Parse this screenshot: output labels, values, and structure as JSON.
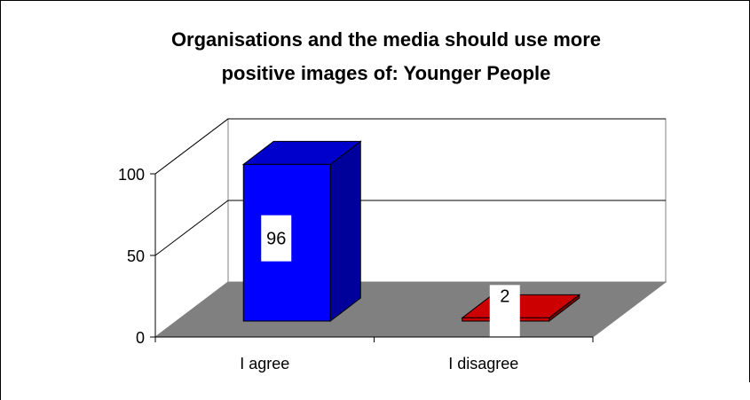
{
  "chart_data": {
    "type": "bar",
    "title_lines": [
      "Organisations and the media should use more",
      "positive images of: Younger People"
    ],
    "categories": [
      "I agree",
      "I disagree"
    ],
    "values": [
      96,
      2
    ],
    "data_labels": [
      "96",
      "2"
    ],
    "y_ticks": [
      "0",
      "50",
      "100"
    ],
    "ylim": [
      0,
      100
    ],
    "grid": true,
    "legend": "none",
    "colors": {
      "bar_0_front": "#0000FF",
      "bar_0_side": "#00009A",
      "bar_0_top": "#0000CC",
      "bar_1_front": "#CC0000",
      "bar_1_side": "#800000",
      "bar_1_top": "#CC0000",
      "floor": "#808080",
      "walls": "#FFFFFF",
      "outline": "#000000"
    }
  }
}
